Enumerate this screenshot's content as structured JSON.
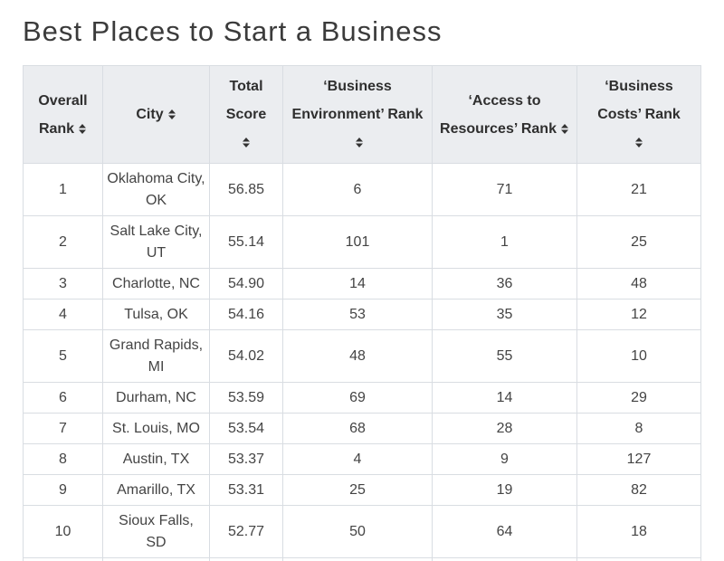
{
  "title": "Best Places to Start a Business",
  "table": {
    "headers": [
      "Overall Rank",
      "City",
      "Total Score",
      "‘Business Environment’ Rank",
      "‘Access to Resources’ Rank",
      "‘Business Costs’ Rank"
    ],
    "sort_icon": "sort-updown-icon",
    "rows": [
      [
        "1",
        "Oklahoma City, OK",
        "56.85",
        "6",
        "71",
        "21"
      ],
      [
        "2",
        "Salt Lake City, UT",
        "55.14",
        "101",
        "1",
        "25"
      ],
      [
        "3",
        "Charlotte, NC",
        "54.90",
        "14",
        "36",
        "48"
      ],
      [
        "4",
        "Tulsa, OK",
        "54.16",
        "53",
        "35",
        "12"
      ],
      [
        "5",
        "Grand Rapids, MI",
        "54.02",
        "48",
        "55",
        "10"
      ],
      [
        "6",
        "Durham, NC",
        "53.59",
        "69",
        "14",
        "29"
      ],
      [
        "7",
        "St. Louis, MO",
        "53.54",
        "68",
        "28",
        "8"
      ],
      [
        "8",
        "Austin, TX",
        "53.37",
        "4",
        "9",
        "127"
      ],
      [
        "9",
        "Amarillo, TX",
        "53.31",
        "25",
        "19",
        "82"
      ],
      [
        "10",
        "Sioux Falls, SD",
        "52.77",
        "50",
        "64",
        "18"
      ]
    ]
  }
}
